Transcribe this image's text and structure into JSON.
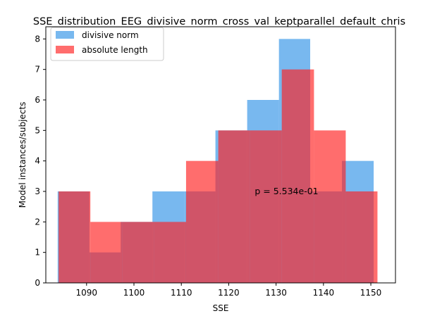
{
  "chart_data": {
    "type": "bar",
    "title": "SSE_distribution_EEG_divisive_norm_cross_val_keptparallel_default_chris",
    "xlabel": "SSE",
    "ylabel": "Model instances/subjects",
    "xlim": [
      1081.4,
      1155.2
    ],
    "ylim": [
      0,
      8.4
    ],
    "xticks": [
      1090,
      1100,
      1110,
      1120,
      1130,
      1140,
      1150
    ],
    "yticks": [
      0,
      1,
      2,
      3,
      4,
      5,
      6,
      7,
      8
    ],
    "grid": false,
    "legend": "top-left",
    "annotation": "p = 5.534e-01",
    "annotation_pos": {
      "x": 1125.5,
      "y": 3
    },
    "series": [
      {
        "name": "divisive norm",
        "color": "#1E88E5",
        "bins": [
          {
            "x0": 1083.9,
            "x1": 1090.6,
            "count": 3
          },
          {
            "x0": 1090.6,
            "x1": 1097.2,
            "count": 1
          },
          {
            "x0": 1097.2,
            "x1": 1103.9,
            "count": 2
          },
          {
            "x0": 1103.9,
            "x1": 1110.6,
            "count": 3
          },
          {
            "x0": 1110.6,
            "x1": 1117.2,
            "count": 3
          },
          {
            "x0": 1117.2,
            "x1": 1123.9,
            "count": 5
          },
          {
            "x0": 1123.9,
            "x1": 1130.6,
            "count": 6
          },
          {
            "x0": 1130.6,
            "x1": 1137.2,
            "count": 8
          },
          {
            "x0": 1137.2,
            "x1": 1143.9,
            "count": 3
          },
          {
            "x0": 1143.9,
            "x1": 1150.6,
            "count": 4
          }
        ]
      },
      {
        "name": "absolute length",
        "color": "#FF1F1F",
        "bins": [
          {
            "x0": 1084.1,
            "x1": 1090.8,
            "count": 3
          },
          {
            "x0": 1090.8,
            "x1": 1097.6,
            "count": 2
          },
          {
            "x0": 1097.6,
            "x1": 1104.3,
            "count": 2
          },
          {
            "x0": 1104.3,
            "x1": 1111.0,
            "count": 2
          },
          {
            "x0": 1111.0,
            "x1": 1117.8,
            "count": 4
          },
          {
            "x0": 1117.8,
            "x1": 1124.5,
            "count": 5
          },
          {
            "x0": 1124.5,
            "x1": 1131.2,
            "count": 5
          },
          {
            "x0": 1131.2,
            "x1": 1138.0,
            "count": 7
          },
          {
            "x0": 1138.0,
            "x1": 1144.7,
            "count": 5
          },
          {
            "x0": 1144.7,
            "x1": 1151.4,
            "count": 3
          }
        ]
      }
    ]
  }
}
